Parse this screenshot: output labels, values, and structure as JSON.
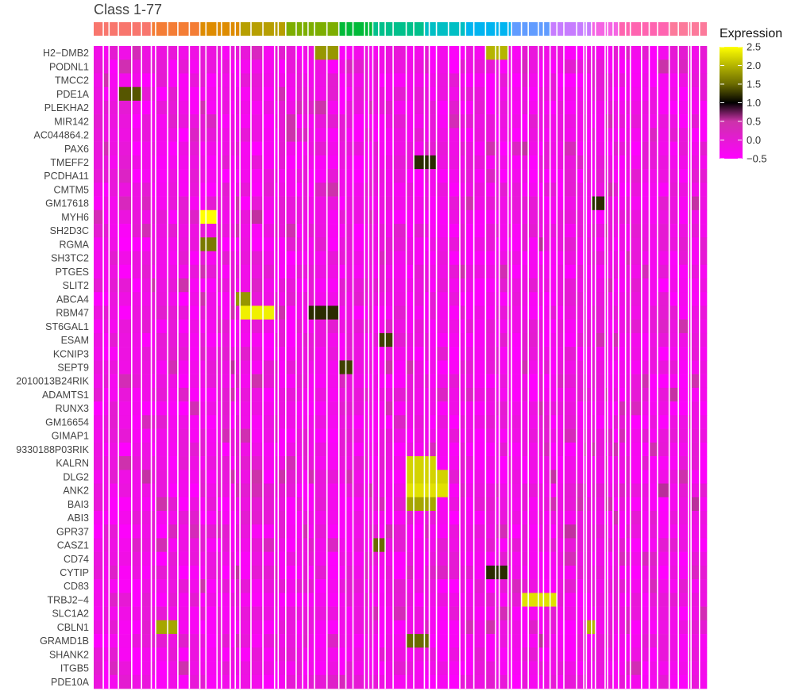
{
  "chart_data": {
    "type": "heatmap",
    "title": "Class 1-77",
    "legend_title": "Expression",
    "legend_ticks": [
      2.5,
      2.0,
      1.5,
      1.0,
      0.5,
      0.0,
      -0.5
    ],
    "legend_tick_labels": [
      "2.5",
      "2.0",
      "1.5",
      "1.0",
      "0.5",
      "0.0",
      "−0.5"
    ],
    "color_scale": {
      "min": -0.5,
      "max": 2.5,
      "stops": [
        {
          "value": -0.5,
          "color": "#ff00ff"
        },
        {
          "value": 0.5,
          "color": "#cc33aa"
        },
        {
          "value": 1.0,
          "color": "#000000"
        },
        {
          "value": 1.5,
          "color": "#6b6b00"
        },
        {
          "value": 2.5,
          "color": "#ffff00"
        }
      ]
    },
    "class_count": 77,
    "class_colors": [
      "#f8766d",
      "#f47d35",
      "#de8c00",
      "#b79f00",
      "#7cae00",
      "#00ba38",
      "#00c08b",
      "#00bfc4",
      "#00b4f0",
      "#619cff",
      "#c77cff",
      "#f564e3",
      "#ff64b0",
      "#fc7a9b"
    ],
    "rows": [
      "H2−DMB2",
      "PODNL1",
      "TMCC2",
      "PDE1A",
      "PLEKHA2",
      "MIR142",
      "AC044864.2",
      "PAX6",
      "TMEFF2",
      "PCDHA11",
      "CMTM5",
      "GM17618",
      "MYH6",
      "SH2D3C",
      "RGMA",
      "SH3TC2",
      "PTGES",
      "SLIT2",
      "ABCA4",
      "RBM47",
      "ST6GAL1",
      "ESAM",
      "KCNIP3",
      "SEPT9",
      "2010013B24RIK",
      "ADAMTS1",
      "RUNX3",
      "GM16654",
      "GIMAP1",
      "9330188P03RIK",
      "KALRN",
      "DLG2",
      "ANK2",
      "BAI3",
      "ABI3",
      "GPR37",
      "CASZ1",
      "CD74",
      "CYTIP",
      "CD83",
      "TRBJ2−4",
      "SLC1A2",
      "CBLN1",
      "GRAMD1B",
      "SHANK2",
      "ITGB5",
      "PDE10A"
    ],
    "highlights": [
      {
        "row": "H2−DMB2",
        "class_start": 46,
        "class_end": 48,
        "value": 2.0
      },
      {
        "row": "H2−DMB2",
        "class_start": 26,
        "class_end": 27,
        "value": 1.8
      },
      {
        "row": "PDE1A",
        "class_start": 3,
        "class_end": 4,
        "value": 1.4
      },
      {
        "row": "MYH6",
        "class_start": 11,
        "class_end": 12,
        "value": 2.5
      },
      {
        "row": "RGMA",
        "class_start": 11,
        "class_end": 12,
        "value": 1.6
      },
      {
        "row": "RBM47",
        "class_start": 17,
        "class_end": 19,
        "value": 2.4
      },
      {
        "row": "RBM47",
        "class_start": 25,
        "class_end": 27,
        "value": 1.2
      },
      {
        "row": "ABCA4",
        "class_start": 16,
        "class_end": 17,
        "value": 1.8
      },
      {
        "row": "ESAM",
        "class_start": 34,
        "class_end": 35,
        "value": 1.3
      },
      {
        "row": "SEPT9",
        "class_start": 28,
        "class_end": 29,
        "value": 1.3
      },
      {
        "row": "KALRN",
        "class_start": 37,
        "class_end": 40,
        "value": 2.2
      },
      {
        "row": "DLG2",
        "class_start": 37,
        "class_end": 41,
        "value": 2.2
      },
      {
        "row": "ANK2",
        "class_start": 37,
        "class_end": 41,
        "value": 2.3
      },
      {
        "row": "BAI3",
        "class_start": 37,
        "class_end": 40,
        "value": 1.9
      },
      {
        "row": "CASZ1",
        "class_start": 33,
        "class_end": 34,
        "value": 1.5
      },
      {
        "row": "TRBJ2−4",
        "class_start": 51,
        "class_end": 55,
        "value": 2.3
      },
      {
        "row": "CBLN1",
        "class_start": 60,
        "class_end": 61,
        "value": 2.0
      },
      {
        "row": "CBLN1",
        "class_start": 7,
        "class_end": 8,
        "value": 1.9
      },
      {
        "row": "GRAMD1B",
        "class_start": 37,
        "class_end": 39,
        "value": 1.5
      },
      {
        "row": "CYTIP",
        "class_start": 46,
        "class_end": 48,
        "value": 1.2
      },
      {
        "row": "GM17618",
        "class_start": 61,
        "class_end": 62,
        "value": 1.2
      },
      {
        "row": "TMEFF2",
        "class_start": 38,
        "class_end": 40,
        "value": 1.2
      }
    ],
    "baseline_value": -0.5
  }
}
